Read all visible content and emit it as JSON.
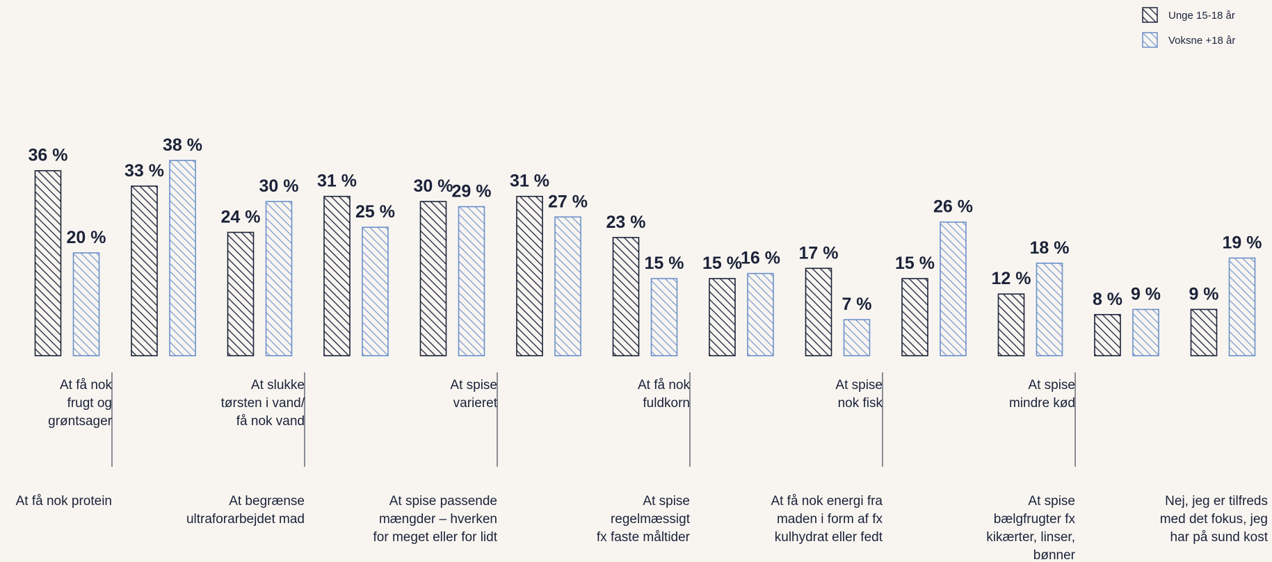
{
  "chart_data": {
    "type": "bar",
    "categories": [
      "At få nok protein",
      "At få nok frugt og grøntsager",
      "At begrænse ultraforarbejdet mad",
      "At slukke tørsten i vand/ få nok vand",
      "At spise passende mængder – hverken for meget eller for lidt",
      "At spise varieret",
      "At spise regelmæssigt fx faste måltider",
      "At få nok fuldkorn",
      "At få nok energi fra maden i form af fx kulhydrat eller fedt",
      "At spise nok fisk",
      "At spise bælgfrugter fx kikærter, linser, bønner",
      "At spise mindre kød",
      "Nej, jeg er tilfreds med det fokus, jeg har på sund kost"
    ],
    "category_lines": [
      [
        "At få nok protein"
      ],
      [
        "At få nok",
        "frugt og",
        "grøntsager"
      ],
      [
        "At begrænse",
        "ultraforarbejdet mad"
      ],
      [
        "At slukke",
        "tørsten i vand/",
        "få nok vand"
      ],
      [
        "At spise passende",
        "mængder – hverken",
        "for meget eller for lidt"
      ],
      [
        "At spise",
        "varieret"
      ],
      [
        "At spise",
        "regelmæssigt",
        "fx faste måltider"
      ],
      [
        "At få nok",
        "fuldkorn"
      ],
      [
        "At få nok energi fra",
        "maden i form af fx",
        "kulhydrat eller fedt"
      ],
      [
        "At spise",
        "nok fisk"
      ],
      [
        "At spise",
        "bælgfrugter fx",
        "kikærter, linser,",
        "bønner"
      ],
      [
        "At spise",
        "mindre kød"
      ],
      [
        "Nej, jeg er tilfreds",
        "med det fokus, jeg",
        "har på sund kost"
      ]
    ],
    "series": [
      {
        "name": "Unge 15-18 år",
        "values": [
          36,
          33,
          24,
          31,
          30,
          31,
          23,
          15,
          17,
          15,
          12,
          8,
          9
        ],
        "color": "#1b2238"
      },
      {
        "name": "Voksne +18 år",
        "values": [
          20,
          38,
          30,
          25,
          29,
          27,
          15,
          16,
          7,
          26,
          18,
          9,
          19
        ],
        "color": "#6b8fc9"
      }
    ],
    "value_labels": [
      [
        "36 %",
        "33 %",
        "24 %",
        "31 %",
        "30 %",
        "31 %",
        "23 %",
        "15 %",
        "17 %",
        "15 %",
        "12 %",
        "8 %",
        "9 %"
      ],
      [
        "20 %",
        "38 %",
        "30 %",
        "25 %",
        "29 %",
        "27 %",
        "15 %",
        "16 %",
        "7 %",
        "26 %",
        "18 %",
        "9 %",
        "19 %"
      ]
    ],
    "unit": "%",
    "ylim": [
      0,
      40
    ],
    "grid": false,
    "legend_position": "top-right"
  },
  "colors": {
    "background": "#f8f5f1",
    "text": "#1b2238",
    "series_dark": "#1b2238",
    "series_light": "#6b8fc9",
    "separator": "#1b2238"
  }
}
